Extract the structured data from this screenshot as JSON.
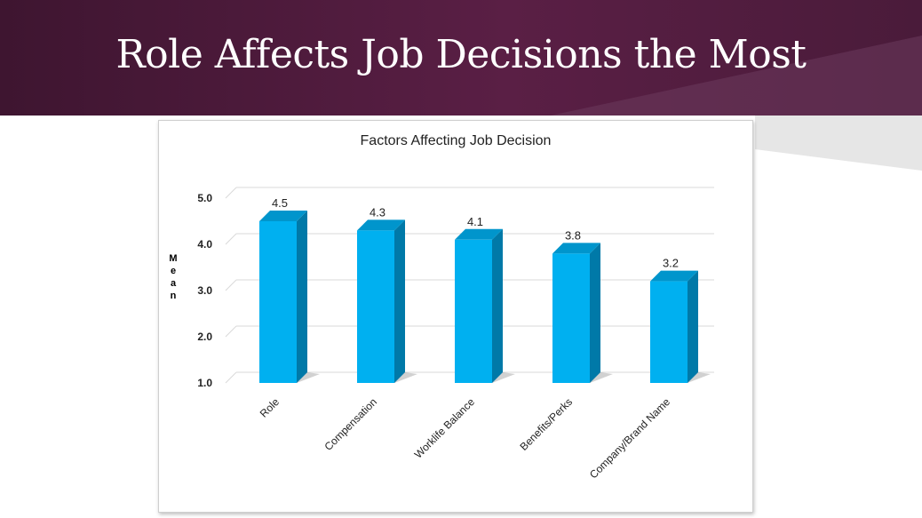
{
  "slide": {
    "title": "Role Affects Job Decisions the Most"
  },
  "colors": {
    "header_dark": "#3e1530",
    "header_mid": "#5a1f45",
    "bar_front": "#00b0f0",
    "bar_side": "#0079a8",
    "bar_top": "#0095cc"
  },
  "chart_data": {
    "type": "bar",
    "title": "Factors Affecting Job Decision",
    "ylabel": "Mean",
    "xlabel": "",
    "categories": [
      "Role",
      "Compensation",
      "Worklife Balance",
      "Benefits/Perks",
      "Company/Brand Name"
    ],
    "values": [
      4.5,
      4.3,
      4.1,
      3.8,
      3.2
    ],
    "data_labels": [
      "4.5",
      "4.3",
      "4.1",
      "3.8",
      "3.2"
    ],
    "ylim": [
      1.0,
      5.0
    ],
    "yticks": [
      "1.0",
      "2.0",
      "3.0",
      "4.0",
      "5.0"
    ],
    "grid": true,
    "style": "3d-column"
  }
}
